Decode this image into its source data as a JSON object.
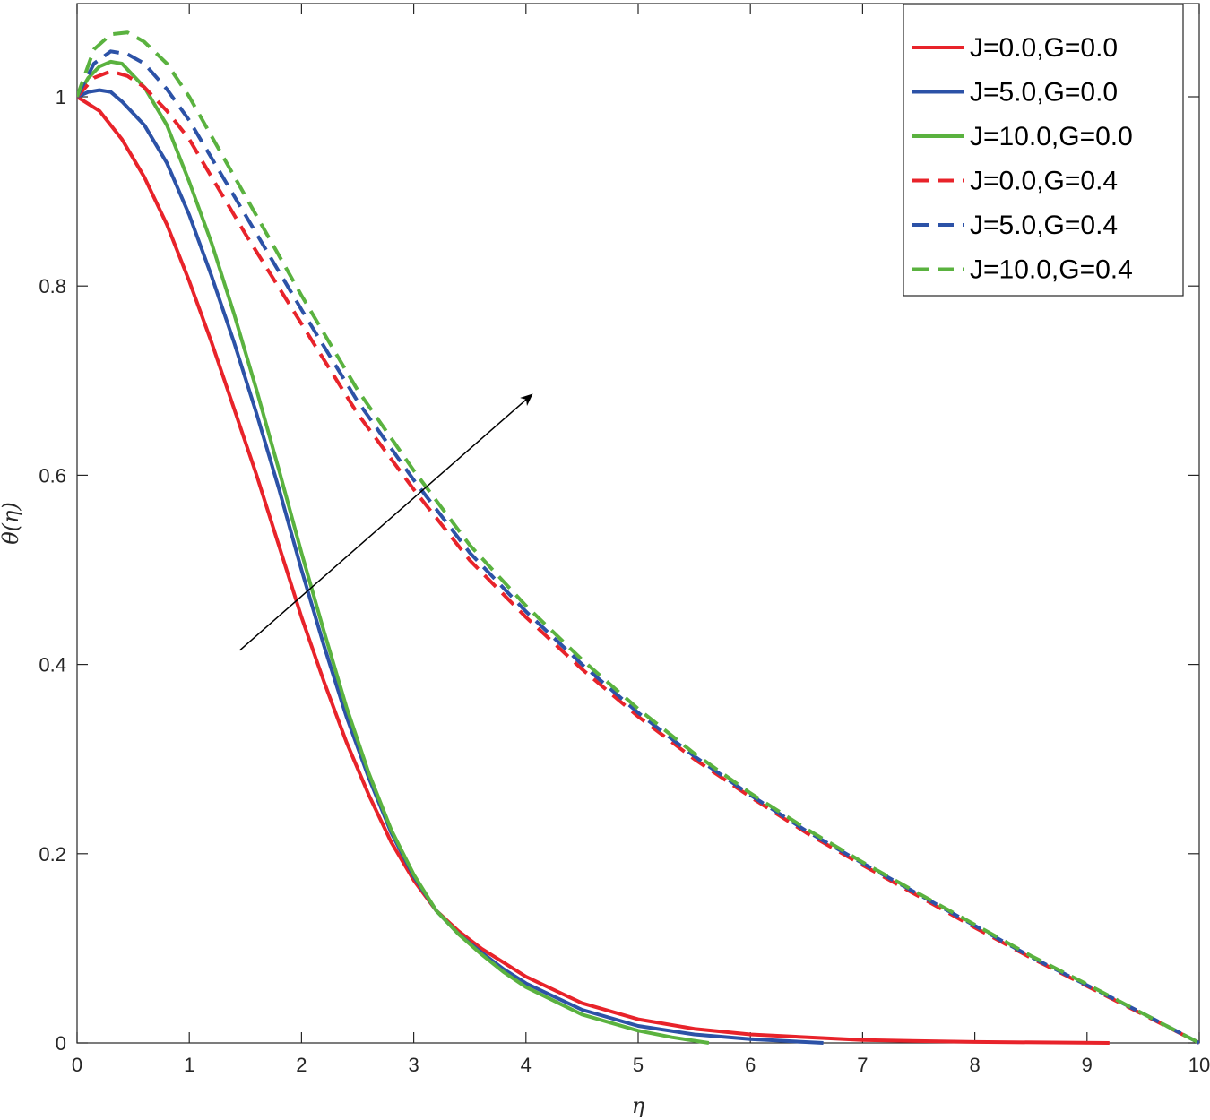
{
  "chart_data": {
    "type": "line",
    "xlabel": "η",
    "ylabel": "θ(η)",
    "xlim": [
      0,
      10
    ],
    "ylim": [
      0,
      1.1
    ],
    "xticks": [
      0,
      1,
      2,
      3,
      4,
      5,
      6,
      7,
      8,
      9,
      10
    ],
    "yticks": [
      0,
      0.2,
      0.4,
      0.6,
      0.8,
      1
    ],
    "xtick_labels": [
      "0",
      "1",
      "2",
      "3",
      "4",
      "5",
      "6",
      "7",
      "8",
      "9",
      "10"
    ],
    "ytick_labels": [
      "0",
      "0.2",
      "0.4",
      "0.6",
      "0.8",
      "1"
    ],
    "grid": false,
    "legend_position": "top-right",
    "series": [
      {
        "name": "J=0.0,G=0.0",
        "color": "#e8232a",
        "dash": "solid",
        "points": [
          [
            0,
            1.0
          ],
          [
            0.2,
            0.985
          ],
          [
            0.4,
            0.955
          ],
          [
            0.6,
            0.915
          ],
          [
            0.8,
            0.865
          ],
          [
            1.0,
            0.805
          ],
          [
            1.2,
            0.74
          ],
          [
            1.4,
            0.67
          ],
          [
            1.6,
            0.6
          ],
          [
            1.8,
            0.525
          ],
          [
            2.0,
            0.45
          ],
          [
            2.2,
            0.382
          ],
          [
            2.4,
            0.318
          ],
          [
            2.6,
            0.262
          ],
          [
            2.8,
            0.212
          ],
          [
            3.0,
            0.172
          ],
          [
            3.2,
            0.14
          ],
          [
            3.4,
            0.118
          ],
          [
            3.6,
            0.1
          ],
          [
            3.8,
            0.085
          ],
          [
            4.0,
            0.07
          ],
          [
            4.5,
            0.042
          ],
          [
            5.0,
            0.025
          ],
          [
            5.5,
            0.015
          ],
          [
            6.0,
            0.009
          ],
          [
            7.0,
            0.003
          ],
          [
            8.0,
            0.001
          ],
          [
            9.2,
            0.0
          ]
        ]
      },
      {
        "name": "J=5.0,G=0.0",
        "color": "#2c52a7",
        "dash": "solid",
        "points": [
          [
            0,
            1.0
          ],
          [
            0.1,
            1.005
          ],
          [
            0.2,
            1.007
          ],
          [
            0.3,
            1.005
          ],
          [
            0.4,
            0.995
          ],
          [
            0.6,
            0.97
          ],
          [
            0.8,
            0.93
          ],
          [
            1.0,
            0.875
          ],
          [
            1.2,
            0.81
          ],
          [
            1.4,
            0.74
          ],
          [
            1.6,
            0.665
          ],
          [
            1.8,
            0.585
          ],
          [
            2.0,
            0.5
          ],
          [
            2.2,
            0.42
          ],
          [
            2.4,
            0.345
          ],
          [
            2.6,
            0.28
          ],
          [
            2.8,
            0.222
          ],
          [
            3.0,
            0.176
          ],
          [
            3.2,
            0.14
          ],
          [
            3.4,
            0.115
          ],
          [
            3.6,
            0.096
          ],
          [
            3.8,
            0.078
          ],
          [
            4.0,
            0.063
          ],
          [
            4.5,
            0.035
          ],
          [
            5.0,
            0.018
          ],
          [
            5.5,
            0.009
          ],
          [
            6.0,
            0.004
          ],
          [
            6.65,
            0.0
          ]
        ]
      },
      {
        "name": "J=10.0,G=0.0",
        "color": "#5ab23f",
        "dash": "solid",
        "points": [
          [
            0,
            1.0
          ],
          [
            0.1,
            1.02
          ],
          [
            0.2,
            1.032
          ],
          [
            0.3,
            1.037
          ],
          [
            0.4,
            1.035
          ],
          [
            0.6,
            1.01
          ],
          [
            0.8,
            0.97
          ],
          [
            1.0,
            0.91
          ],
          [
            1.2,
            0.845
          ],
          [
            1.4,
            0.77
          ],
          [
            1.6,
            0.69
          ],
          [
            1.8,
            0.605
          ],
          [
            2.0,
            0.518
          ],
          [
            2.2,
            0.435
          ],
          [
            2.4,
            0.355
          ],
          [
            2.6,
            0.285
          ],
          [
            2.8,
            0.225
          ],
          [
            3.0,
            0.178
          ],
          [
            3.2,
            0.14
          ],
          [
            3.4,
            0.115
          ],
          [
            3.6,
            0.094
          ],
          [
            3.8,
            0.075
          ],
          [
            4.0,
            0.059
          ],
          [
            4.5,
            0.03
          ],
          [
            5.0,
            0.013
          ],
          [
            5.3,
            0.006
          ],
          [
            5.63,
            0.0
          ]
        ]
      },
      {
        "name": "J=0.0,G=0.4",
        "color": "#e8232a",
        "dash": "dashed",
        "points": [
          [
            0,
            1.0
          ],
          [
            0.15,
            1.02
          ],
          [
            0.3,
            1.027
          ],
          [
            0.45,
            1.022
          ],
          [
            0.6,
            1.01
          ],
          [
            0.8,
            0.985
          ],
          [
            1.0,
            0.955
          ],
          [
            1.2,
            0.915
          ],
          [
            1.5,
            0.855
          ],
          [
            2.0,
            0.76
          ],
          [
            2.5,
            0.665
          ],
          [
            3.0,
            0.585
          ],
          [
            3.5,
            0.51
          ],
          [
            4.0,
            0.45
          ],
          [
            4.5,
            0.395
          ],
          [
            5.0,
            0.345
          ],
          [
            5.5,
            0.3
          ],
          [
            6.0,
            0.26
          ],
          [
            6.5,
            0.222
          ],
          [
            7.0,
            0.188
          ],
          [
            7.5,
            0.155
          ],
          [
            8.0,
            0.122
          ],
          [
            8.5,
            0.09
          ],
          [
            9.0,
            0.06
          ],
          [
            9.5,
            0.03
          ],
          [
            10.0,
            0.0
          ]
        ]
      },
      {
        "name": "J=5.0,G=0.4",
        "color": "#2c52a7",
        "dash": "dashed",
        "points": [
          [
            0,
            1.0
          ],
          [
            0.15,
            1.035
          ],
          [
            0.3,
            1.048
          ],
          [
            0.45,
            1.045
          ],
          [
            0.6,
            1.035
          ],
          [
            0.8,
            1.008
          ],
          [
            1.0,
            0.975
          ],
          [
            1.2,
            0.935
          ],
          [
            1.5,
            0.875
          ],
          [
            2.0,
            0.775
          ],
          [
            2.5,
            0.678
          ],
          [
            3.0,
            0.595
          ],
          [
            3.5,
            0.518
          ],
          [
            4.0,
            0.456
          ],
          [
            4.5,
            0.4
          ],
          [
            5.0,
            0.349
          ],
          [
            5.5,
            0.303
          ],
          [
            6.0,
            0.262
          ],
          [
            6.5,
            0.224
          ],
          [
            7.0,
            0.19
          ],
          [
            7.5,
            0.157
          ],
          [
            8.0,
            0.124
          ],
          [
            8.5,
            0.091
          ],
          [
            9.0,
            0.061
          ],
          [
            9.5,
            0.031
          ],
          [
            10.0,
            0.0
          ]
        ]
      },
      {
        "name": "J=10.0,G=0.4",
        "color": "#5ab23f",
        "dash": "dashed",
        "points": [
          [
            0,
            1.0
          ],
          [
            0.15,
            1.05
          ],
          [
            0.3,
            1.066
          ],
          [
            0.45,
            1.068
          ],
          [
            0.6,
            1.058
          ],
          [
            0.8,
            1.035
          ],
          [
            1.0,
            1.0
          ],
          [
            1.2,
            0.958
          ],
          [
            1.5,
            0.895
          ],
          [
            2.0,
            0.79
          ],
          [
            2.5,
            0.69
          ],
          [
            3.0,
            0.605
          ],
          [
            3.5,
            0.526
          ],
          [
            4.0,
            0.462
          ],
          [
            4.5,
            0.405
          ],
          [
            5.0,
            0.353
          ],
          [
            5.5,
            0.306
          ],
          [
            6.0,
            0.264
          ],
          [
            6.5,
            0.226
          ],
          [
            7.0,
            0.191
          ],
          [
            7.5,
            0.158
          ],
          [
            8.0,
            0.125
          ],
          [
            8.5,
            0.092
          ],
          [
            9.0,
            0.062
          ],
          [
            9.5,
            0.031
          ],
          [
            10.0,
            0.0
          ]
        ]
      }
    ],
    "annotations": [
      {
        "type": "arrow",
        "from": [
          1.45,
          0.415
        ],
        "to": [
          4.05,
          0.685
        ],
        "color": "#000000"
      }
    ]
  }
}
